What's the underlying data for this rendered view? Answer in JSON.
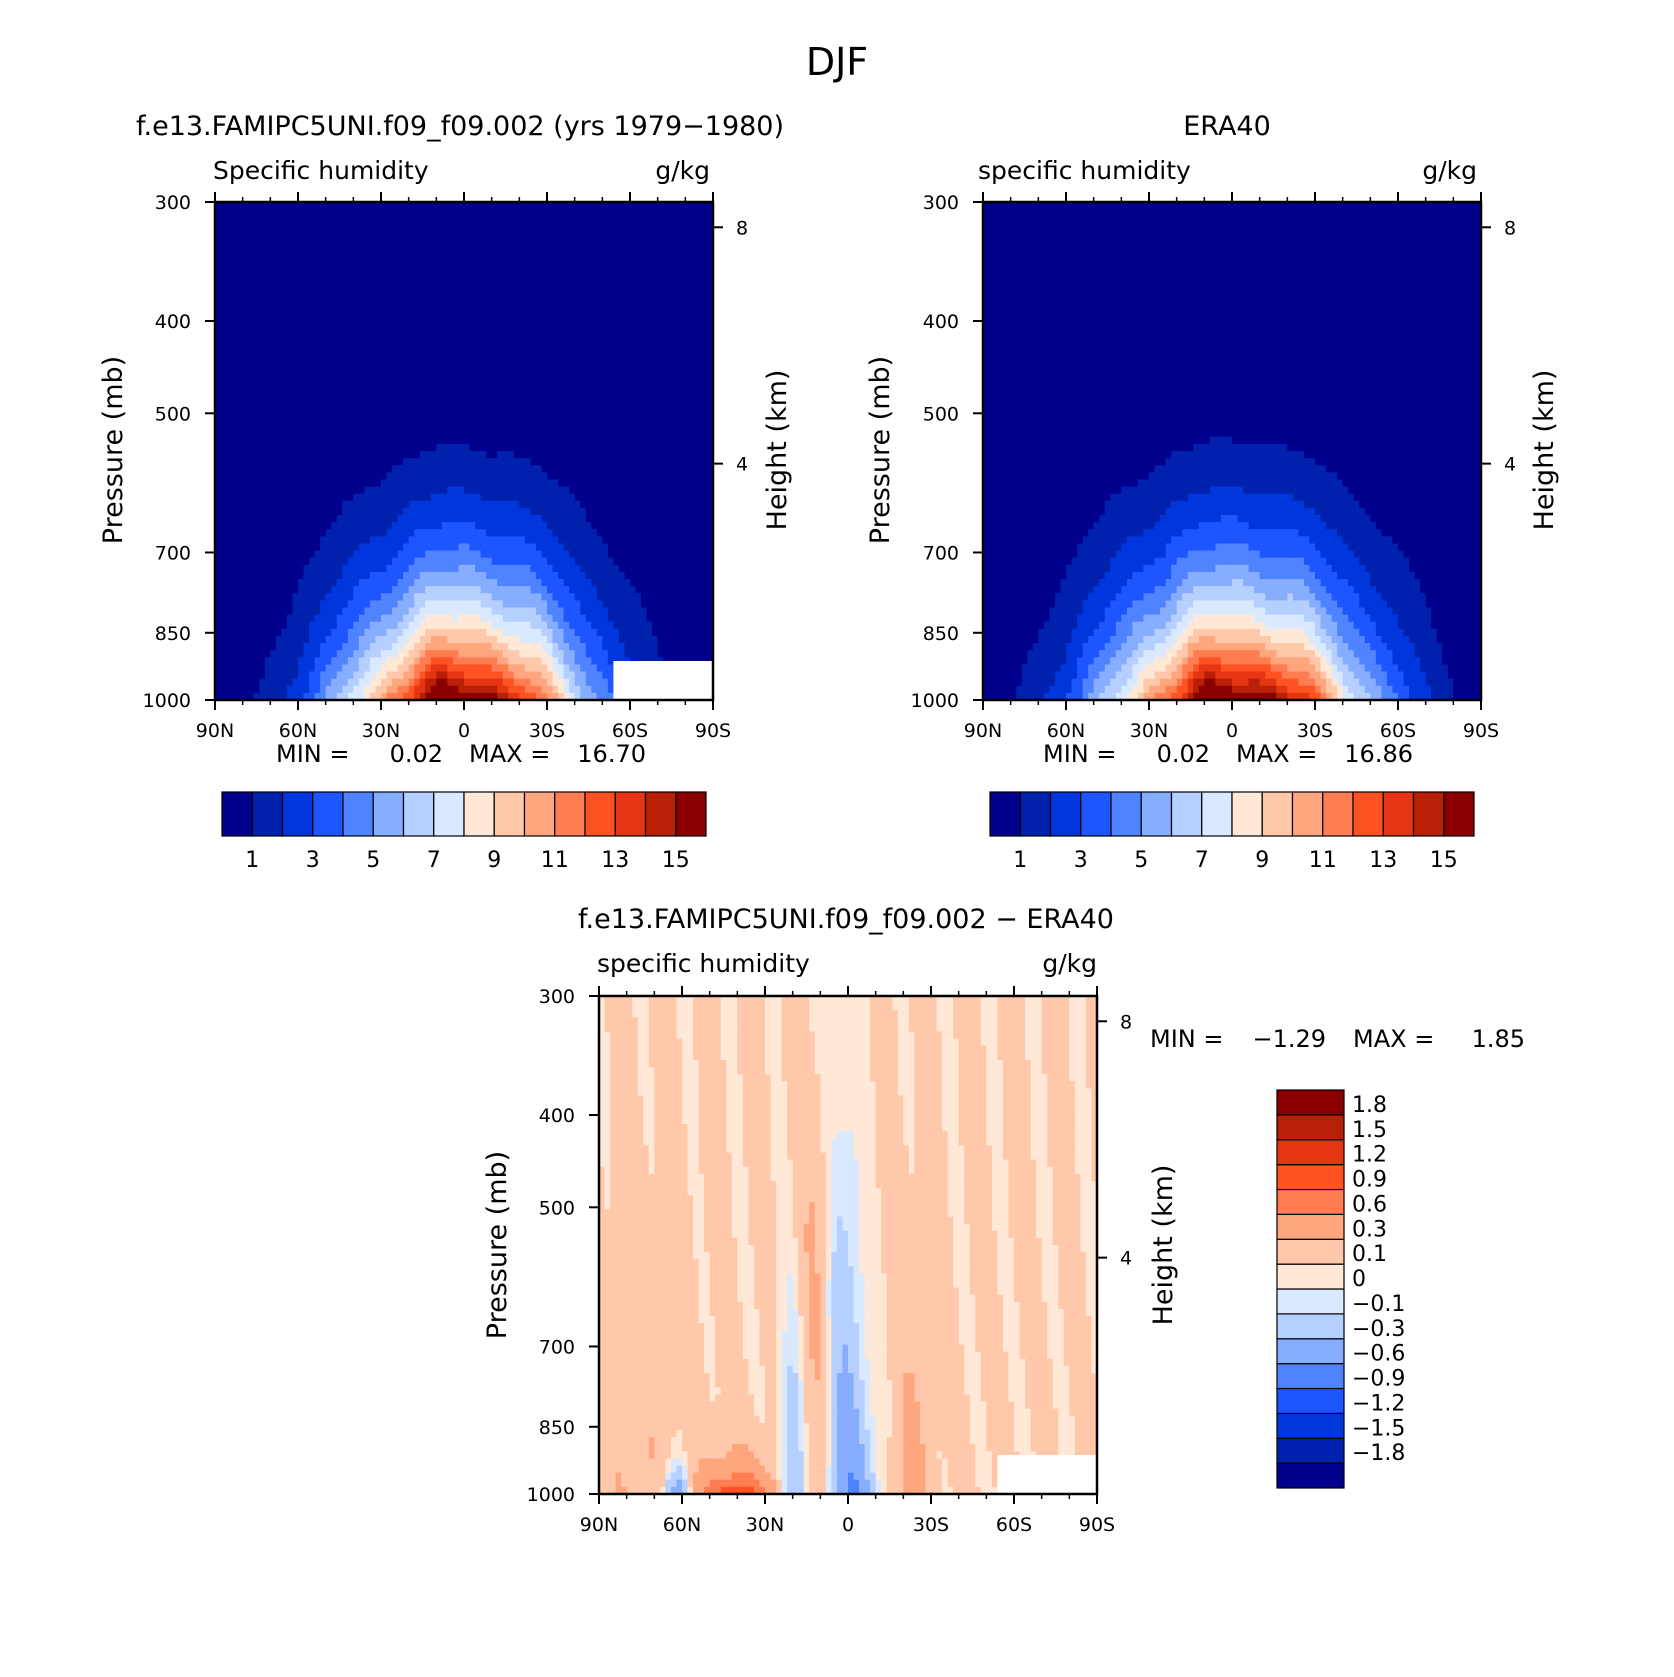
{
  "figure": {
    "title": "DJF"
  },
  "chart_data": [
    {
      "type": "heatmap",
      "title": "f.e13.FAMIPC5UNI.f09_f09.002 (yrs 1979−1980)",
      "left_label": "Specific humidity",
      "right_label": "g/kg",
      "ylabel": "Pressure (mb)",
      "ylabel_right": "Height (km)",
      "x_ticks": [
        "90N",
        "60N",
        "30N",
        "0",
        "30S",
        "60S",
        "90S"
      ],
      "y_ticks": [
        "300",
        "400",
        "500",
        "700",
        "850",
        "1000"
      ],
      "y_right_ticks": [
        "8",
        "4"
      ],
      "xlim": [
        90,
        -90
      ],
      "ylim": [
        1000,
        300
      ],
      "y_scale": "log",
      "min_label": "MIN =",
      "min_value": "0.02",
      "max_label": "MAX =",
      "max_value": "16.70",
      "peak": 16.7,
      "center_lat": 0,
      "half_width": 62,
      "top_pressure": 380,
      "masked_high_south_surface": true,
      "levels": [
        1,
        2,
        3,
        4,
        5,
        6,
        7,
        8,
        9,
        10,
        11,
        12,
        13,
        14,
        15
      ],
      "colorbar_labels": [
        "1",
        "3",
        "5",
        "7",
        "9",
        "11",
        "13",
        "15"
      ],
      "colors": [
        "#00008c",
        "#0021ad",
        "#0037dd",
        "#1d55ff",
        "#4f83ff",
        "#87adff",
        "#b5cfff",
        "#d9e9ff",
        "#ffe8d6",
        "#ffc8aa",
        "#ffa67f",
        "#ff7d50",
        "#ff5222",
        "#e53512",
        "#b82007",
        "#8a0000"
      ]
    },
    {
      "type": "heatmap",
      "title": "ERA40",
      "left_label": "specific humidity",
      "right_label": "g/kg",
      "ylabel": "Pressure (mb)",
      "ylabel_right": "Height (km)",
      "x_ticks": [
        "90N",
        "60N",
        "30N",
        "0",
        "30S",
        "60S",
        "90S"
      ],
      "y_ticks": [
        "300",
        "400",
        "500",
        "700",
        "850",
        "1000"
      ],
      "y_right_ticks": [
        "8",
        "4"
      ],
      "xlim": [
        90,
        -90
      ],
      "ylim": [
        1000,
        300
      ],
      "y_scale": "log",
      "min_label": "MIN =",
      "min_value": "0.02",
      "max_label": "MAX =",
      "max_value": "16.86",
      "peak": 16.86,
      "center_lat": -2,
      "half_width": 66,
      "top_pressure": 370,
      "masked_high_south_surface": false,
      "levels": [
        1,
        2,
        3,
        4,
        5,
        6,
        7,
        8,
        9,
        10,
        11,
        12,
        13,
        14,
        15
      ],
      "colorbar_labels": [
        "1",
        "3",
        "5",
        "7",
        "9",
        "11",
        "13",
        "15"
      ],
      "colors": [
        "#00008c",
        "#0021ad",
        "#0037dd",
        "#1d55ff",
        "#4f83ff",
        "#87adff",
        "#b5cfff",
        "#d9e9ff",
        "#ffe8d6",
        "#ffc8aa",
        "#ffa67f",
        "#ff7d50",
        "#ff5222",
        "#e53512",
        "#b82007",
        "#8a0000"
      ]
    },
    {
      "type": "heatmap",
      "title": "f.e13.FAMIPC5UNI.f09_f09.002 − ERA40",
      "left_label": "specific humidity",
      "right_label": "g/kg",
      "ylabel": "Pressure (mb)",
      "ylabel_right": "Height (km)",
      "x_ticks": [
        "90N",
        "60N",
        "30N",
        "0",
        "30S",
        "60S",
        "90S"
      ],
      "y_ticks": [
        "300",
        "400",
        "500",
        "700",
        "850",
        "1000"
      ],
      "y_right_ticks": [
        "8",
        "4"
      ],
      "xlim": [
        90,
        -90
      ],
      "ylim": [
        1000,
        300
      ],
      "y_scale": "log",
      "min_label": "MIN =",
      "min_value": "−1.29",
      "max_label": "MAX =",
      "max_value": "1.85",
      "masked_high_south_surface": true,
      "levels": [
        -1.8,
        -1.5,
        -1.2,
        -0.9,
        -0.6,
        -0.3,
        -0.1,
        0,
        0.1,
        0.3,
        0.6,
        0.9,
        1.2,
        1.5,
        1.8
      ],
      "colorbar_labels": [
        "1.8",
        "1.5",
        "1.2",
        "0.9",
        "0.6",
        "0.3",
        "0.1",
        "0",
        "−0.1",
        "−0.3",
        "−0.6",
        "−0.9",
        "−1.2",
        "−1.5",
        "−1.8"
      ],
      "colors": [
        "#00008c",
        "#0021ad",
        "#0037dd",
        "#1d55ff",
        "#4f83ff",
        "#87adff",
        "#b5cfff",
        "#d9e9ff",
        "#ffe8d6",
        "#ffc8aa",
        "#ffa67f",
        "#ff7d50",
        "#ff5222",
        "#e53512",
        "#b82007",
        "#8a0000"
      ]
    }
  ]
}
